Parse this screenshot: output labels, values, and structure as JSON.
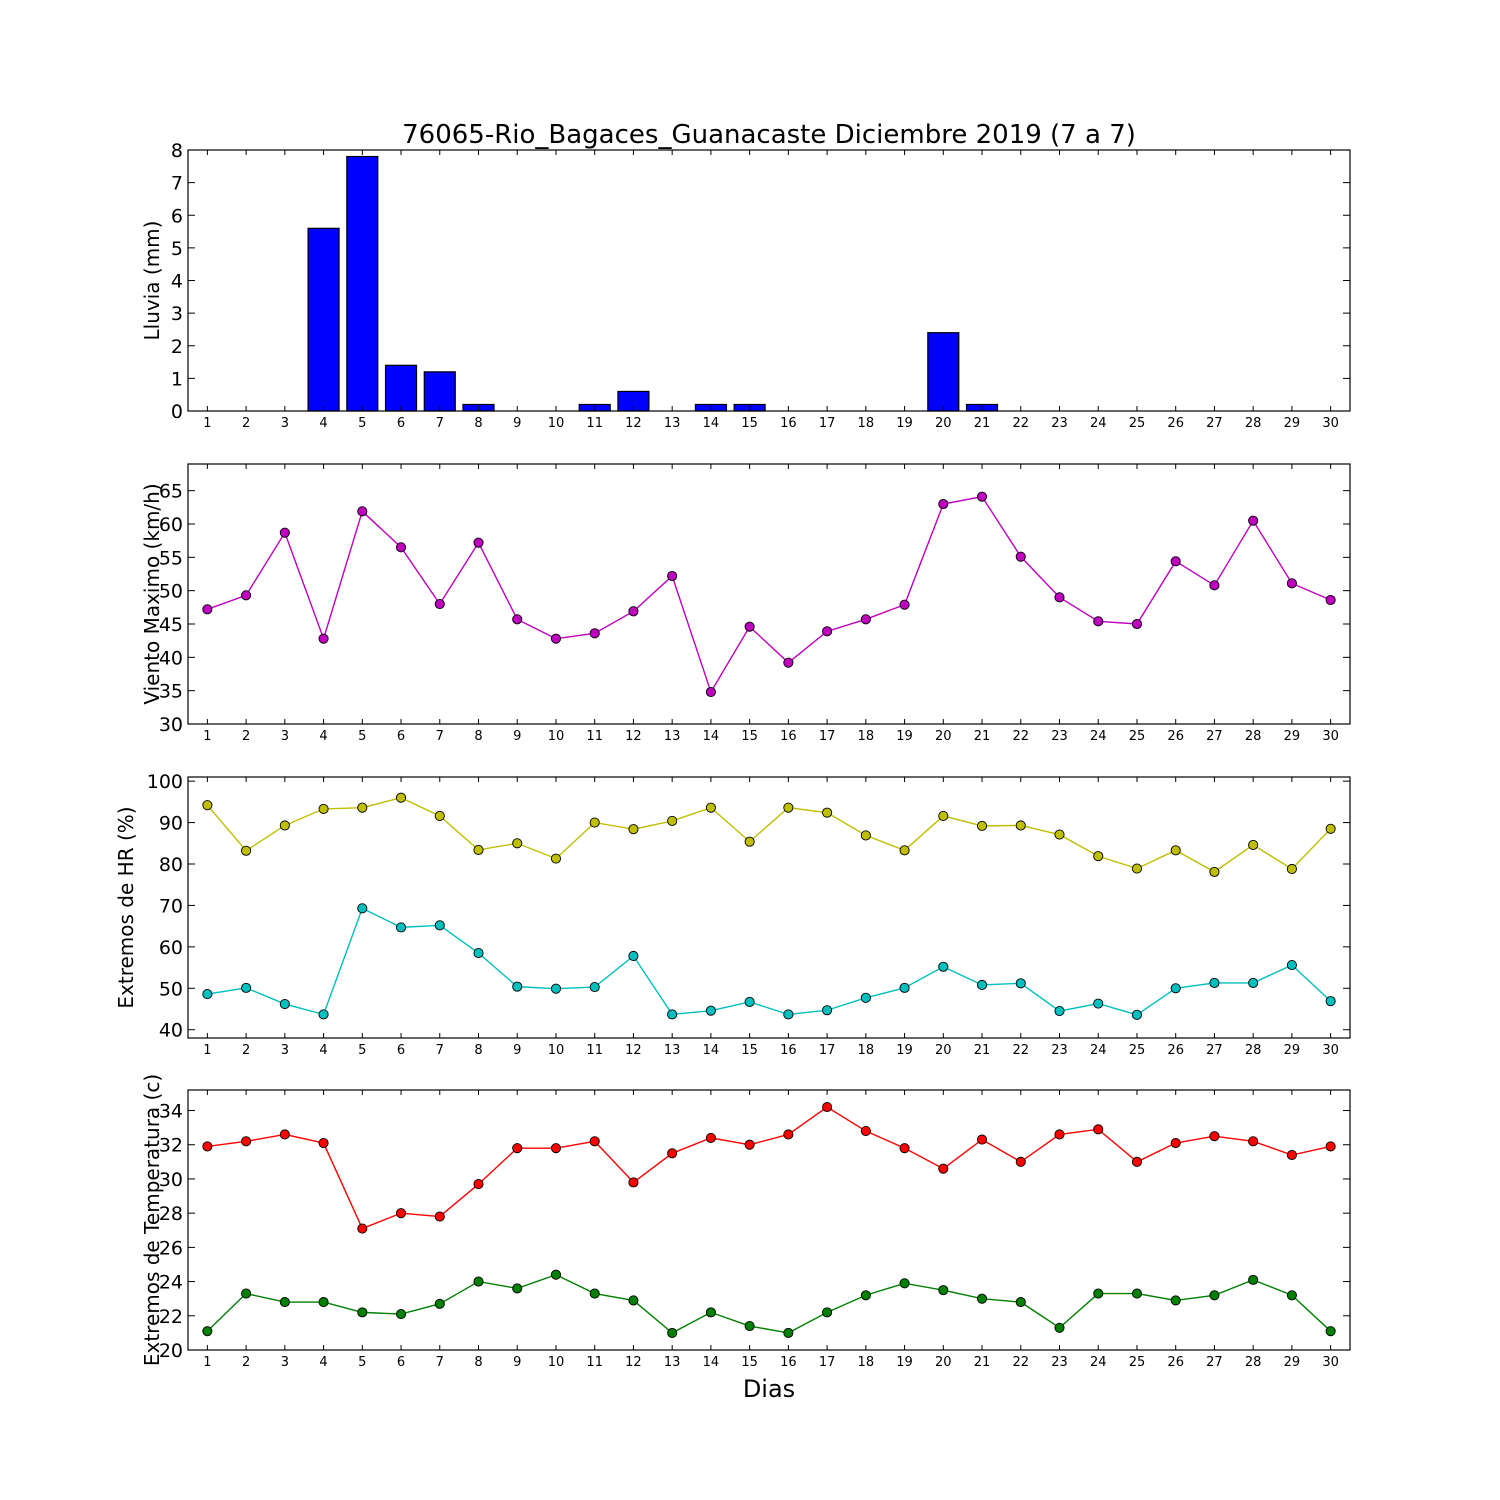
{
  "chart_data": [
    {
      "type": "bar",
      "title": "76065-Rio_Bagaces_Guanacaste Diciembre 2019  (7 a 7)",
      "xlabel": "",
      "ylabel": "Lluvia (mm)",
      "x": [
        1,
        2,
        3,
        4,
        5,
        6,
        7,
        8,
        9,
        10,
        11,
        12,
        13,
        14,
        15,
        16,
        17,
        18,
        19,
        20,
        21,
        22,
        23,
        24,
        25,
        26,
        27,
        28,
        29,
        30
      ],
      "xlim": [
        0.5,
        30.5
      ],
      "ylim": [
        0,
        8
      ],
      "yticks": [
        0,
        1,
        2,
        3,
        4,
        5,
        6,
        7,
        8
      ],
      "grid": false,
      "series": [
        {
          "color": "#0000ff",
          "values": [
            0,
            0,
            0,
            5.6,
            7.8,
            1.4,
            1.2,
            0.2,
            0,
            0,
            0.2,
            0.6,
            0,
            0.2,
            0.2,
            0,
            0,
            0,
            0,
            2.4,
            0.2,
            0,
            0,
            0,
            0,
            0,
            0,
            0,
            0,
            0
          ]
        }
      ]
    },
    {
      "type": "line",
      "title": "",
      "xlabel": "",
      "ylabel": "Viento Maximo (km/h)",
      "x": [
        1,
        2,
        3,
        4,
        5,
        6,
        7,
        8,
        9,
        10,
        11,
        12,
        13,
        14,
        15,
        16,
        17,
        18,
        19,
        20,
        21,
        22,
        23,
        24,
        25,
        26,
        27,
        28,
        29,
        30
      ],
      "xlim": [
        0.5,
        30.5
      ],
      "ylim": [
        30,
        69
      ],
      "yticks": [
        30,
        35,
        40,
        45,
        50,
        55,
        60,
        65
      ],
      "grid": false,
      "series": [
        {
          "color": "#bf00bf",
          "values": [
            47.2,
            49.3,
            58.7,
            42.8,
            61.9,
            56.5,
            48.0,
            57.2,
            45.7,
            42.8,
            43.6,
            46.9,
            52.2,
            34.8,
            44.6,
            39.2,
            43.9,
            45.7,
            47.9,
            63.0,
            64.1,
            55.1,
            49.0,
            45.4,
            45.0,
            54.4,
            50.8,
            60.5,
            51.1,
            48.6
          ]
        }
      ]
    },
    {
      "type": "line",
      "title": "",
      "xlabel": "",
      "ylabel": "Extremos de HR (%)",
      "x": [
        1,
        2,
        3,
        4,
        5,
        6,
        7,
        8,
        9,
        10,
        11,
        12,
        13,
        14,
        15,
        16,
        17,
        18,
        19,
        20,
        21,
        22,
        23,
        24,
        25,
        26,
        27,
        28,
        29,
        30
      ],
      "xlim": [
        0.5,
        30.5
      ],
      "ylim": [
        38,
        101
      ],
      "yticks": [
        40,
        50,
        60,
        70,
        80,
        90,
        100
      ],
      "grid": false,
      "series": [
        {
          "color": "#bfbf00",
          "values": [
            94.2,
            83.2,
            89.3,
            93.3,
            93.6,
            96.0,
            91.6,
            83.4,
            85.0,
            81.3,
            90.0,
            88.4,
            90.4,
            93.6,
            85.4,
            93.6,
            92.4,
            86.9,
            83.3,
            91.6,
            89.2,
            89.3,
            87.1,
            81.9,
            78.9,
            83.3,
            78.1,
            84.6,
            78.8,
            88.5
          ]
        },
        {
          "color": "#00bfbf",
          "values": [
            48.6,
            50.1,
            46.2,
            43.7,
            69.3,
            64.7,
            65.2,
            58.5,
            50.4,
            49.9,
            50.3,
            57.8,
            43.7,
            44.6,
            46.7,
            43.7,
            44.7,
            47.7,
            50.1,
            55.2,
            50.8,
            51.2,
            44.5,
            46.3,
            43.6,
            50.0,
            51.3,
            51.3,
            55.6,
            46.9
          ]
        }
      ]
    },
    {
      "type": "line",
      "title": "",
      "xlabel": "Dias",
      "ylabel": "Extremos de Temperatura (c)",
      "x": [
        1,
        2,
        3,
        4,
        5,
        6,
        7,
        8,
        9,
        10,
        11,
        12,
        13,
        14,
        15,
        16,
        17,
        18,
        19,
        20,
        21,
        22,
        23,
        24,
        25,
        26,
        27,
        28,
        29,
        30
      ],
      "xlim": [
        0.5,
        30.5
      ],
      "ylim": [
        20,
        35.2
      ],
      "yticks": [
        20,
        22,
        24,
        26,
        28,
        30,
        32,
        34
      ],
      "grid": false,
      "series": [
        {
          "color": "#ff0000",
          "values": [
            31.9,
            32.2,
            32.6,
            32.1,
            27.1,
            28.0,
            27.8,
            29.7,
            31.8,
            31.8,
            32.2,
            29.8,
            31.5,
            32.4,
            32.0,
            32.6,
            34.2,
            32.8,
            31.8,
            30.6,
            32.3,
            31.0,
            32.6,
            32.9,
            31.0,
            32.1,
            32.5,
            32.2,
            31.4,
            31.9
          ]
        },
        {
          "color": "#008000",
          "values": [
            21.1,
            23.3,
            22.8,
            22.8,
            22.2,
            22.1,
            22.7,
            24.0,
            23.6,
            24.4,
            23.3,
            22.9,
            21.0,
            22.2,
            21.4,
            21.0,
            22.2,
            23.2,
            23.9,
            23.5,
            23.0,
            22.8,
            21.3,
            23.3,
            23.3,
            22.9,
            23.2,
            24.1,
            23.2,
            21.1
          ]
        }
      ]
    }
  ]
}
